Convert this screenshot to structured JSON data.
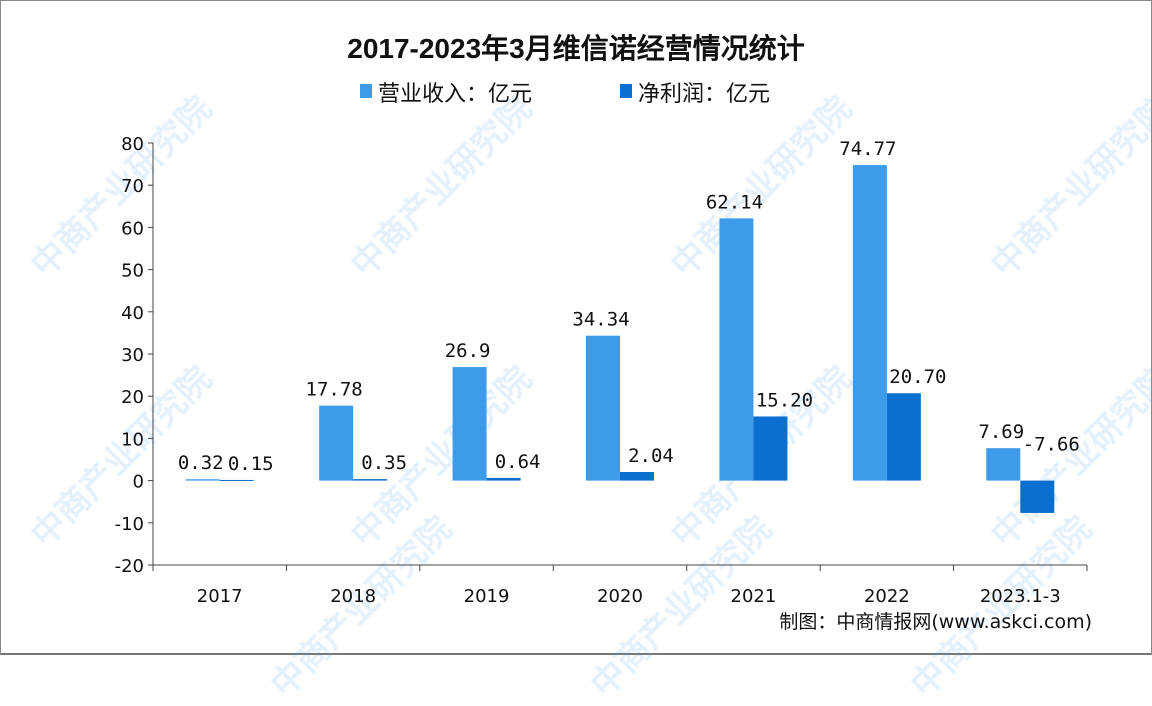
{
  "chart_data": {
    "type": "bar",
    "title": "2017-2023年3月维信诺经营情况统计",
    "categories": [
      "2017",
      "2018",
      "2019",
      "2020",
      "2021",
      "2022",
      "2023.1-3"
    ],
    "series": [
      {
        "name": "营业收入：亿元",
        "color": "#3d9be9",
        "values": [
          0.32,
          17.78,
          26.9,
          34.34,
          62.14,
          74.77,
          7.69
        ],
        "labels": [
          "0.32",
          "17.78",
          "26.9",
          "34.34",
          "62.14",
          "74.77",
          "7.69"
        ]
      },
      {
        "name": "净利润：亿元",
        "color": "#0b6fcf",
        "values": [
          0.15,
          0.35,
          0.64,
          2.04,
          15.2,
          20.7,
          -7.66
        ],
        "labels": [
          "0.15",
          "0.35",
          "0.64",
          "2.04",
          "15.20",
          "20.70",
          "-7.66"
        ]
      }
    ],
    "ylim": [
      -20,
      80
    ],
    "yticks": [
      -20,
      -10,
      0,
      10,
      20,
      30,
      40,
      50,
      60,
      70,
      80
    ],
    "legend": "top",
    "grid": false,
    "source": "制图：中商情报网(www.askci.com)",
    "watermark": "中商产业研究院"
  }
}
